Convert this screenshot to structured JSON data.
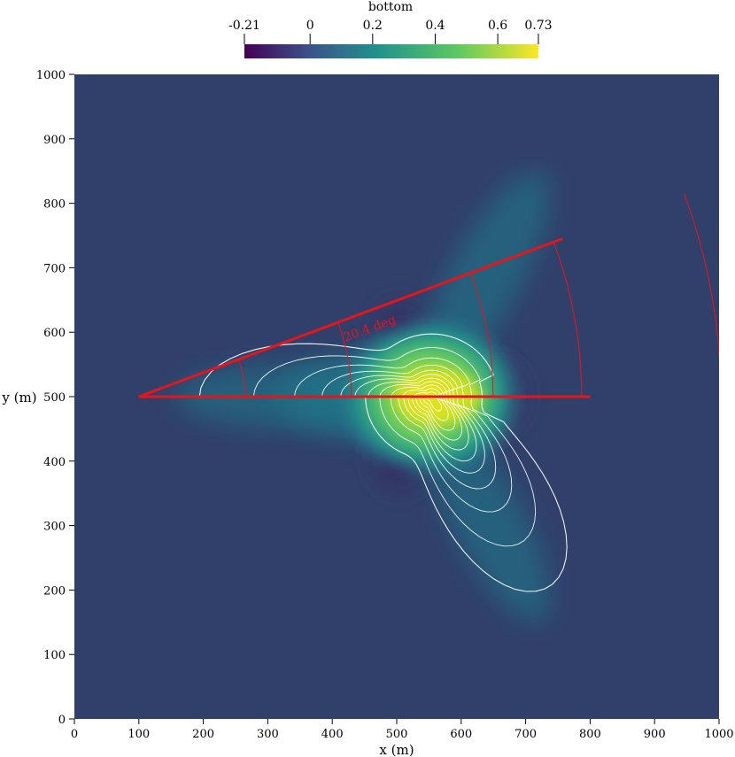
{
  "chart_data": {
    "type": "heatmap",
    "title": "bottom",
    "colorbar": {
      "label": "bottom",
      "range": [
        -0.21,
        0.73
      ],
      "ticks": [
        -0.21,
        0,
        0.2,
        0.4,
        0.6,
        0.73
      ],
      "tick_labels": [
        "-0.21",
        "0",
        "0.2",
        "0.4",
        "0.6",
        "0.73"
      ],
      "colormap": "viridis",
      "colors": [
        "#440154",
        "#3b528b",
        "#21918c",
        "#5ec962",
        "#fde725"
      ]
    },
    "xlabel": "x (m)",
    "ylabel": "y (m)",
    "xlim": [
      0,
      1000
    ],
    "ylim": [
      0,
      1000
    ],
    "xticks": [
      0,
      100,
      200,
      300,
      400,
      500,
      600,
      700,
      800,
      900,
      1000
    ],
    "yticks": [
      0,
      100,
      200,
      300,
      400,
      500,
      600,
      700,
      800,
      900,
      1000
    ],
    "grid": false,
    "background_color": "#31406b",
    "field_peak": {
      "x": 565,
      "y": 500,
      "value": 0.73
    },
    "field_minima": [
      {
        "x": 505,
        "y": 592,
        "value": -0.21
      },
      {
        "x": 505,
        "y": 408,
        "value": -0.21
      },
      {
        "x": 655,
        "y": 500,
        "value": -0.21
      }
    ],
    "annotations": {
      "angle_label": "20.4 deg",
      "angle_deg": 20.4,
      "vertex": {
        "x": 100,
        "y": 500
      },
      "horizontal_end": {
        "x": 800,
        "y": 500
      },
      "ray_end": {
        "x": 757,
        "y": 745
      },
      "line_color": "#e8141c"
    }
  }
}
